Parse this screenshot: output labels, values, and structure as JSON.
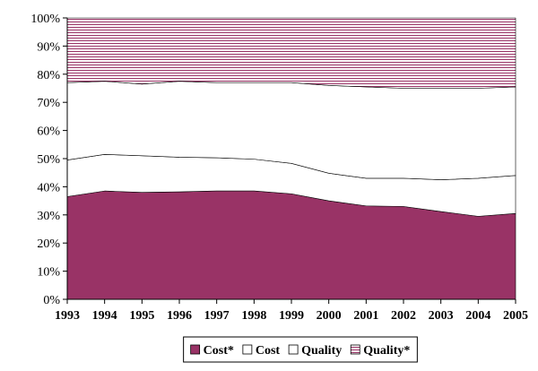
{
  "chart_data": {
    "type": "area",
    "stacked": true,
    "percent": true,
    "x": [
      "1993",
      "1994",
      "1995",
      "1996",
      "1997",
      "1998",
      "1999",
      "2000",
      "2001",
      "2002",
      "2003",
      "2004",
      "2005"
    ],
    "y_tick_labels": [
      "0%",
      "10%",
      "20%",
      "30%",
      "40%",
      "50%",
      "60%",
      "70%",
      "80%",
      "90%",
      "100%"
    ],
    "ylim": [
      0,
      100
    ],
    "legend_position": "bottom",
    "grid": false,
    "series": [
      {
        "name": "Cost*",
        "fill": "#993366",
        "pattern": "solid",
        "values": [
          36.5,
          38.5,
          38.0,
          38.2,
          38.5,
          38.5,
          37.5,
          35.0,
          33.2,
          33.0,
          31.2,
          29.5,
          30.5
        ]
      },
      {
        "name": "Cost",
        "fill": "#ffffff",
        "pattern": "solid",
        "values": [
          13.0,
          13.0,
          13.0,
          12.3,
          11.8,
          11.3,
          10.8,
          9.8,
          9.8,
          10.0,
          11.3,
          13.5,
          13.5
        ]
      },
      {
        "name": "Quality",
        "fill": "#ffffff",
        "pattern": "solid",
        "values": [
          27.5,
          26.0,
          25.5,
          27.0,
          26.7,
          27.2,
          28.7,
          31.2,
          32.5,
          32.0,
          32.5,
          32.0,
          31.5
        ]
      },
      {
        "name": "Quality*",
        "fill": "#993366",
        "pattern": "horizontal-lines",
        "values": [
          23.0,
          22.5,
          23.5,
          22.5,
          23.0,
          23.0,
          23.0,
          24.0,
          24.5,
          25.0,
          25.0,
          25.0,
          24.5
        ]
      }
    ]
  }
}
